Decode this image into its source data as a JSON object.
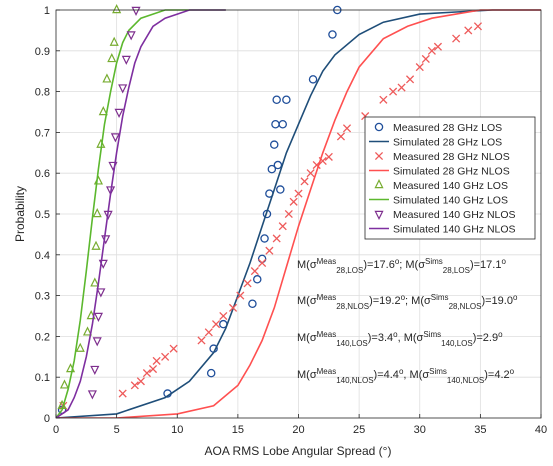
{
  "chart_data": {
    "type": "line",
    "xlabel": "AOA RMS Lobe Angular Spread (°)",
    "ylabel": "Probability",
    "xlim": [
      0,
      40
    ],
    "ylim": [
      0,
      1
    ],
    "x_ticks": [
      "0",
      "5",
      "10",
      "15",
      "20",
      "25",
      "30",
      "35",
      "40"
    ],
    "y_ticks": [
      "0",
      "0.1",
      "0.2",
      "0.3",
      "0.4",
      "0.5",
      "0.6",
      "0.7",
      "0.8",
      "0.9",
      "1"
    ],
    "grid": true,
    "legend_position": "right",
    "series": [
      {
        "name": "Measured 28 GHz LOS",
        "kind": "marker",
        "marker": "circle",
        "color": "#1f4e9a",
        "x": [
          0.5,
          9.2,
          12.8,
          13.0,
          13.8,
          16.2,
          16.6,
          17.0,
          17.2,
          17.4,
          17.6,
          17.8,
          18.0,
          18.1,
          18.2,
          18.3,
          18.5,
          18.7,
          19.0,
          21.2,
          22.8,
          23.2
        ],
        "y": [
          0.02,
          0.06,
          0.11,
          0.17,
          0.23,
          0.28,
          0.34,
          0.39,
          0.44,
          0.5,
          0.55,
          0.61,
          0.67,
          0.72,
          0.78,
          0.62,
          0.56,
          0.72,
          0.78,
          0.83,
          0.94,
          1.0
        ]
      },
      {
        "name": "Simulated 28 GHz LOS",
        "kind": "line",
        "color": "#1f4e79",
        "x": [
          0,
          5,
          9,
          11,
          13,
          14,
          15,
          16,
          17,
          18,
          19,
          20,
          21,
          22,
          23,
          25,
          27,
          30,
          33,
          36,
          40
        ],
        "y": [
          0.0,
          0.01,
          0.05,
          0.09,
          0.16,
          0.22,
          0.3,
          0.38,
          0.47,
          0.56,
          0.65,
          0.72,
          0.79,
          0.85,
          0.89,
          0.94,
          0.97,
          0.99,
          0.995,
          1.0,
          1.0
        ]
      },
      {
        "name": "Measured 28 GHz NLOS",
        "kind": "marker",
        "marker": "x",
        "color": "#ee5a5a",
        "x": [
          0.6,
          5.5,
          6.5,
          7.0,
          7.5,
          8.0,
          8.3,
          9.0,
          9.7,
          12.0,
          12.6,
          13.2,
          13.8,
          14.6,
          15.2,
          15.8,
          16.4,
          17.0,
          17.6,
          18.2,
          18.7,
          19.2,
          19.6,
          20.0,
          20.5,
          21.0,
          21.5,
          22.0,
          22.5,
          23.5,
          24.0,
          25.5,
          27.0,
          27.8,
          28.5,
          29.2,
          30.0,
          30.5,
          31.0,
          31.5,
          33.0,
          34.0,
          34.8
        ],
        "y": [
          0.03,
          0.06,
          0.08,
          0.09,
          0.11,
          0.12,
          0.14,
          0.15,
          0.17,
          0.19,
          0.21,
          0.23,
          0.25,
          0.27,
          0.3,
          0.33,
          0.36,
          0.38,
          0.41,
          0.44,
          0.47,
          0.5,
          0.53,
          0.55,
          0.58,
          0.6,
          0.62,
          0.63,
          0.64,
          0.69,
          0.71,
          0.74,
          0.78,
          0.8,
          0.81,
          0.83,
          0.86,
          0.88,
          0.9,
          0.91,
          0.93,
          0.95,
          0.96
        ]
      },
      {
        "name": "Simulated 28 GHz NLOS",
        "kind": "line",
        "color": "#ff5050",
        "x": [
          0,
          5,
          10,
          13,
          15,
          16,
          17,
          18,
          19,
          20,
          21,
          22,
          23,
          24,
          25,
          27,
          29,
          31,
          33,
          35,
          40
        ],
        "y": [
          0.0,
          0.0,
          0.01,
          0.03,
          0.08,
          0.13,
          0.19,
          0.27,
          0.37,
          0.47,
          0.56,
          0.65,
          0.73,
          0.8,
          0.86,
          0.93,
          0.96,
          0.98,
          0.99,
          1.0,
          1.0
        ]
      },
      {
        "name": "Measured 140 GHz LOS",
        "kind": "marker",
        "marker": "triangle-up",
        "color": "#77ac30",
        "x": [
          0.5,
          0.7,
          1.2,
          2.0,
          2.6,
          2.9,
          3.2,
          3.3,
          3.4,
          3.5,
          3.7,
          3.9,
          4.2,
          4.6,
          4.8,
          5.0
        ],
        "y": [
          0.03,
          0.08,
          0.12,
          0.17,
          0.21,
          0.25,
          0.33,
          0.42,
          0.5,
          0.58,
          0.67,
          0.75,
          0.83,
          0.88,
          0.92,
          1.0
        ]
      },
      {
        "name": "Simulated 140 GHz LOS",
        "kind": "line",
        "color": "#5cb82e",
        "x": [
          0,
          0.5,
          1,
          1.5,
          2,
          2.5,
          3,
          3.5,
          4,
          4.5,
          5,
          5.5,
          6,
          7,
          8,
          9,
          10,
          12,
          14
        ],
        "y": [
          0.0,
          0.02,
          0.07,
          0.14,
          0.24,
          0.36,
          0.49,
          0.61,
          0.72,
          0.8,
          0.87,
          0.92,
          0.95,
          0.98,
          0.99,
          1.0,
          1.0,
          1.0,
          1.0
        ]
      },
      {
        "name": "Measured 140 GHz NLOS",
        "kind": "marker",
        "marker": "triangle-down",
        "color": "#7e2f8e",
        "x": [
          3.0,
          3.2,
          3.4,
          3.5,
          3.7,
          3.9,
          4.1,
          4.3,
          4.5,
          4.7,
          4.9,
          5.2,
          5.5,
          5.8,
          6.2,
          6.6
        ],
        "y": [
          0.06,
          0.12,
          0.19,
          0.25,
          0.31,
          0.38,
          0.44,
          0.5,
          0.56,
          0.62,
          0.69,
          0.75,
          0.81,
          0.88,
          0.94,
          1.0
        ]
      },
      {
        "name": "Simulated 140 GHz NLOS",
        "kind": "line",
        "color": "#7e2fa0",
        "x": [
          0,
          1,
          1.5,
          2,
          2.5,
          3,
          3.5,
          4,
          4.5,
          5,
          5.5,
          6,
          6.5,
          7,
          8,
          9,
          10,
          11,
          12,
          13,
          14
        ],
        "y": [
          0.0,
          0.02,
          0.05,
          0.09,
          0.15,
          0.23,
          0.33,
          0.44,
          0.55,
          0.65,
          0.74,
          0.81,
          0.87,
          0.91,
          0.96,
          0.98,
          0.99,
          1.0,
          1.0,
          1.0,
          1.0
        ]
      }
    ],
    "annotations": [
      {
        "parts": [
          [
            "M(σ",
            "base"
          ],
          [
            "Meas",
            "sup"
          ],
          [
            "28,LOS",
            "sub"
          ],
          [
            ")=17.6",
            "base"
          ],
          [
            "o",
            "sup"
          ],
          [
            "; M(σ",
            "base"
          ],
          [
            "Sims",
            "sup"
          ],
          [
            "28,LOS",
            "sub"
          ],
          [
            ")=17.1",
            "base"
          ],
          [
            "o",
            "sup"
          ]
        ]
      },
      {
        "parts": [
          [
            "M(σ",
            "base"
          ],
          [
            "Meas",
            "sup"
          ],
          [
            "28,NLOS",
            "sub"
          ],
          [
            ")=19.2",
            "base"
          ],
          [
            "o",
            "sup"
          ],
          [
            "; M(σ",
            "base"
          ],
          [
            "Sims",
            "sup"
          ],
          [
            "28,NLOS",
            "sub"
          ],
          [
            ")=19.0",
            "base"
          ],
          [
            "o",
            "sup"
          ]
        ]
      },
      {
        "parts": [
          [
            "M(σ",
            "base"
          ],
          [
            "Meas",
            "sup"
          ],
          [
            "140,LOS",
            "sub"
          ],
          [
            ")=3.4",
            "base"
          ],
          [
            "o",
            "sup"
          ],
          [
            ", M(σ",
            "base"
          ],
          [
            "Sims",
            "sup"
          ],
          [
            "140,LOS",
            "sub"
          ],
          [
            ")=2.9",
            "base"
          ],
          [
            "o",
            "sup"
          ]
        ]
      },
      {
        "parts": [
          [
            "M(σ",
            "base"
          ],
          [
            "Meas",
            "sup"
          ],
          [
            "140,NLOS",
            "sub"
          ],
          [
            ")=4.4",
            "base"
          ],
          [
            "o",
            "sup"
          ],
          [
            ", M(σ",
            "base"
          ],
          [
            "Sims",
            "sup"
          ],
          [
            "140,NLOS",
            "sub"
          ],
          [
            ")=4.2",
            "base"
          ],
          [
            "o",
            "sup"
          ]
        ]
      }
    ]
  }
}
